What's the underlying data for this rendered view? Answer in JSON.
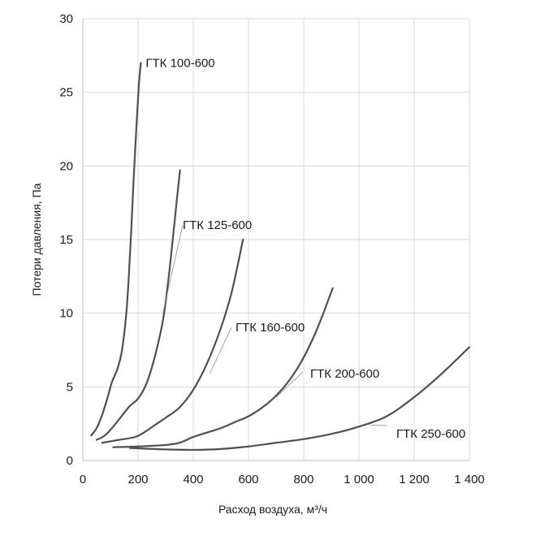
{
  "chart_data": {
    "type": "line",
    "xlabel": "Расход воздуха, м³/ч",
    "ylabel": "Потери давления, Па",
    "xlim": [
      0,
      1400
    ],
    "ylim": [
      0,
      30
    ],
    "x_ticks": [
      0,
      200,
      400,
      600,
      800,
      1000,
      1200,
      1400
    ],
    "x_tick_labels": [
      "0",
      "200",
      "400",
      "600",
      "800",
      "1 000",
      "1 200",
      "1 400"
    ],
    "y_ticks": [
      0,
      5,
      10,
      15,
      20,
      25,
      30
    ],
    "y_tick_labels": [
      "0",
      "5",
      "10",
      "15",
      "20",
      "25",
      "30"
    ],
    "grid": true,
    "line_color": "#505050",
    "series": [
      {
        "name": "ГТК 100-600",
        "points": [
          [
            30,
            1.7
          ],
          [
            50,
            2.2
          ],
          [
            70,
            3.1
          ],
          [
            90,
            4.3
          ],
          [
            105,
            5.3
          ],
          [
            125,
            6.2
          ],
          [
            140,
            7.3
          ],
          [
            155,
            9.5
          ],
          [
            165,
            12
          ],
          [
            175,
            15.5
          ],
          [
            185,
            19.5
          ],
          [
            195,
            23
          ],
          [
            203,
            25.5
          ],
          [
            210,
            27.0
          ]
        ]
      },
      {
        "name": "ГТК 125-600",
        "points": [
          [
            50,
            1.4
          ],
          [
            80,
            1.7
          ],
          [
            110,
            2.3
          ],
          [
            140,
            3.0
          ],
          [
            170,
            3.7
          ],
          [
            200,
            4.2
          ],
          [
            230,
            5.2
          ],
          [
            260,
            7.0
          ],
          [
            290,
            9.5
          ],
          [
            310,
            12.3
          ],
          [
            330,
            15.8
          ],
          [
            345,
            18.5
          ],
          [
            352,
            19.7
          ]
        ]
      },
      {
        "name": "ГТК 160-600",
        "points": [
          [
            70,
            1.2
          ],
          [
            130,
            1.4
          ],
          [
            190,
            1.6
          ],
          [
            230,
            2.0
          ],
          [
            260,
            2.4
          ],
          [
            300,
            2.9
          ],
          [
            350,
            3.6
          ],
          [
            400,
            4.8
          ],
          [
            450,
            6.6
          ],
          [
            500,
            9.0
          ],
          [
            540,
            11.5
          ],
          [
            580,
            15.0
          ]
        ]
      },
      {
        "name": "ГТК 200-600",
        "points": [
          [
            110,
            0.9
          ],
          [
            200,
            0.95
          ],
          [
            300,
            1.05
          ],
          [
            350,
            1.2
          ],
          [
            400,
            1.6
          ],
          [
            450,
            1.9
          ],
          [
            500,
            2.2
          ],
          [
            550,
            2.6
          ],
          [
            600,
            3.0
          ],
          [
            650,
            3.6
          ],
          [
            700,
            4.4
          ],
          [
            750,
            5.5
          ],
          [
            800,
            7.0
          ],
          [
            850,
            9.0
          ],
          [
            905,
            11.7
          ]
        ]
      },
      {
        "name": "ГТК 250-600",
        "points": [
          [
            170,
            0.85
          ],
          [
            300,
            0.75
          ],
          [
            400,
            0.72
          ],
          [
            500,
            0.78
          ],
          [
            600,
            0.95
          ],
          [
            700,
            1.2
          ],
          [
            800,
            1.45
          ],
          [
            900,
            1.8
          ],
          [
            1000,
            2.3
          ],
          [
            1100,
            3.0
          ],
          [
            1200,
            4.3
          ],
          [
            1300,
            5.9
          ],
          [
            1400,
            7.7
          ]
        ]
      }
    ]
  }
}
